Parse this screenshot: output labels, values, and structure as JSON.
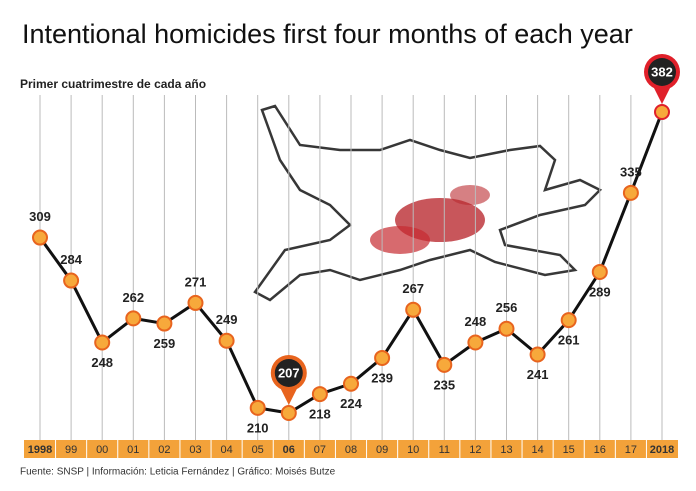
{
  "chart_data": {
    "type": "line",
    "title": "Intentional homicides first four months of each year",
    "subtitle": "Primer cuatrimestre de cada año",
    "footer": "Fuente: SNSP | Información: Leticia Fernández | Gráfico: Moisés Butze",
    "categories": [
      "1998",
      "99",
      "00",
      "01",
      "02",
      "03",
      "04",
      "05",
      "06",
      "07",
      "08",
      "09",
      "10",
      "11",
      "12",
      "13",
      "14",
      "15",
      "16",
      "17",
      "2018"
    ],
    "values": [
      309,
      284,
      248,
      262,
      259,
      271,
      249,
      210,
      207,
      218,
      224,
      239,
      267,
      235,
      248,
      256,
      241,
      261,
      289,
      335,
      382
    ],
    "label_position": [
      "above",
      "above",
      "below",
      "above",
      "below",
      "above",
      "above",
      "below",
      "callout",
      "below",
      "below",
      "below",
      "above",
      "below",
      "above",
      "above",
      "below",
      "below",
      "below",
      "above",
      "callout"
    ],
    "bold_categories": [
      0,
      8,
      20
    ],
    "callouts": [
      {
        "index": 8,
        "color": "#e8641e"
      },
      {
        "index": 20,
        "color": "#e0202a"
      }
    ],
    "line_color": "#111111",
    "marker_color": "#f7a93b",
    "marker_edge": "#e8641e",
    "axis_band_color": "#f3a23a",
    "grid": true
  }
}
